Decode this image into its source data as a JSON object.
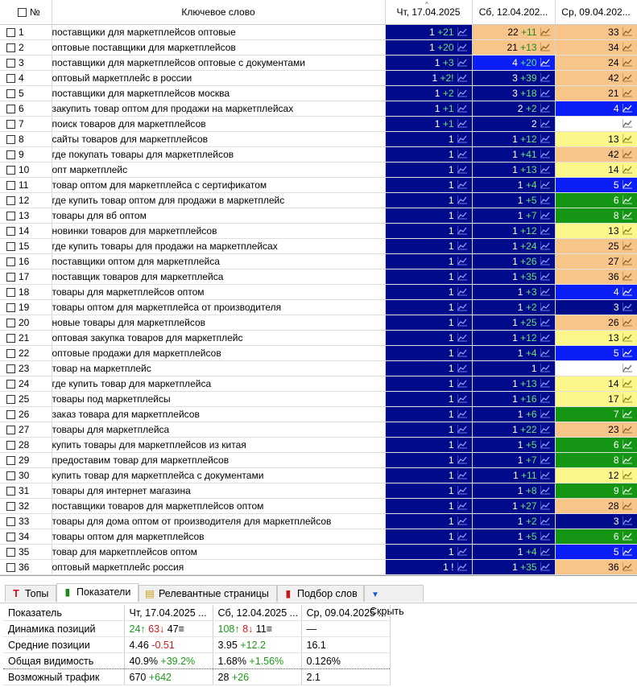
{
  "grid": {
    "headers": {
      "num": "№",
      "keyword": "Ключевое слово",
      "d1": "Чт, 17.04.2025",
      "d2": "Сб, 12.04.202...",
      "d3": "Ср, 09.04.202..."
    },
    "rows": [
      {
        "n": "1",
        "kw": "поставщики для маркетплейсов оптовые",
        "c": [
          [
            "1",
            "+21",
            "dark"
          ],
          [
            "22",
            "+11",
            "peach"
          ],
          [
            "33",
            "",
            "peach"
          ]
        ]
      },
      {
        "n": "2",
        "kw": "оптовые поставщики для маркетплейсов",
        "c": [
          [
            "1",
            "+20",
            "dark"
          ],
          [
            "21",
            "+13",
            "peach"
          ],
          [
            "34",
            "",
            "peach"
          ]
        ]
      },
      {
        "n": "3",
        "kw": "поставщики для маркетплейсов оптовые с документами",
        "c": [
          [
            "1",
            "+3",
            "dark"
          ],
          [
            "4",
            "+20",
            "blue"
          ],
          [
            "24",
            "",
            "peach"
          ]
        ]
      },
      {
        "n": "4",
        "kw": "оптовый маркетплейс в россии",
        "c": [
          [
            "1",
            "+2!",
            "dark"
          ],
          [
            "3",
            "+39",
            "dark"
          ],
          [
            "42",
            "",
            "peach"
          ]
        ]
      },
      {
        "n": "5",
        "kw": "поставщики для маркетплейсов москва",
        "c": [
          [
            "1",
            "+2",
            "dark"
          ],
          [
            "3",
            "+18",
            "dark"
          ],
          [
            "21",
            "",
            "peach"
          ]
        ]
      },
      {
        "n": "6",
        "kw": "закупить товар оптом для продажи на маркетплейсах",
        "c": [
          [
            "1",
            "+1",
            "dark"
          ],
          [
            "2",
            "+2",
            "dark"
          ],
          [
            "4",
            "",
            "blue"
          ]
        ]
      },
      {
        "n": "7",
        "kw": "поиск товаров для маркетплейсов",
        "c": [
          [
            "1",
            "+1",
            "dark"
          ],
          [
            "2",
            "",
            "dark"
          ],
          [
            "",
            "",
            "white"
          ]
        ]
      },
      {
        "n": "8",
        "kw": "сайты товаров для маркетплейсов",
        "c": [
          [
            "1",
            "",
            "dark"
          ],
          [
            "1",
            "+12",
            "dark"
          ],
          [
            "13",
            "",
            "yellow"
          ]
        ]
      },
      {
        "n": "9",
        "kw": "где покупать товары для маркетплейсов",
        "c": [
          [
            "1",
            "",
            "dark"
          ],
          [
            "1",
            "+41",
            "dark"
          ],
          [
            "42",
            "",
            "peach"
          ]
        ]
      },
      {
        "n": "10",
        "kw": "опт маркетплейс",
        "c": [
          [
            "1",
            "",
            "dark"
          ],
          [
            "1",
            "+13",
            "dark"
          ],
          [
            "14",
            "",
            "yellow"
          ]
        ]
      },
      {
        "n": "11",
        "kw": "товар оптом для маркетплейса с сертификатом",
        "c": [
          [
            "1",
            "",
            "dark"
          ],
          [
            "1",
            "+4",
            "dark"
          ],
          [
            "5",
            "",
            "blue"
          ]
        ]
      },
      {
        "n": "12",
        "kw": "где купить товар оптом для продажи в маркетплейс",
        "c": [
          [
            "1",
            "",
            "dark"
          ],
          [
            "1",
            "+5",
            "dark"
          ],
          [
            "6",
            "",
            "green"
          ]
        ]
      },
      {
        "n": "13",
        "kw": "товары для вб оптом",
        "c": [
          [
            "1",
            "",
            "dark"
          ],
          [
            "1",
            "+7",
            "dark"
          ],
          [
            "8",
            "",
            "green"
          ]
        ]
      },
      {
        "n": "14",
        "kw": "новинки товаров для маркетплейсов",
        "c": [
          [
            "1",
            "",
            "dark"
          ],
          [
            "1",
            "+12",
            "dark"
          ],
          [
            "13",
            "",
            "yellow"
          ]
        ]
      },
      {
        "n": "15",
        "kw": "где купить товары для продажи на маркетплейсах",
        "c": [
          [
            "1",
            "",
            "dark"
          ],
          [
            "1",
            "+24",
            "dark"
          ],
          [
            "25",
            "",
            "peach"
          ]
        ]
      },
      {
        "n": "16",
        "kw": "поставщики оптом для маркетплейса",
        "c": [
          [
            "1",
            "",
            "dark"
          ],
          [
            "1",
            "+26",
            "dark"
          ],
          [
            "27",
            "",
            "peach"
          ]
        ]
      },
      {
        "n": "17",
        "kw": "поставщик товаров для маркетплейса",
        "c": [
          [
            "1",
            "",
            "dark"
          ],
          [
            "1",
            "+35",
            "dark"
          ],
          [
            "36",
            "",
            "peach"
          ]
        ]
      },
      {
        "n": "18",
        "kw": "товары для маркетплейсов оптом",
        "c": [
          [
            "1",
            "",
            "dark"
          ],
          [
            "1",
            "+3",
            "dark"
          ],
          [
            "4",
            "",
            "blue"
          ]
        ]
      },
      {
        "n": "19",
        "kw": "товары оптом для маркетплейса от производителя",
        "c": [
          [
            "1",
            "",
            "dark"
          ],
          [
            "1",
            "+2",
            "dark"
          ],
          [
            "3",
            "",
            "dark"
          ]
        ]
      },
      {
        "n": "20",
        "kw": "новые товары для маркетплейсов",
        "c": [
          [
            "1",
            "",
            "dark"
          ],
          [
            "1",
            "+25",
            "dark"
          ],
          [
            "26",
            "",
            "peach"
          ]
        ]
      },
      {
        "n": "21",
        "kw": "оптовая закупка товаров для маркетплейс",
        "c": [
          [
            "1",
            "",
            "dark"
          ],
          [
            "1",
            "+12",
            "dark"
          ],
          [
            "13",
            "",
            "yellow"
          ]
        ]
      },
      {
        "n": "22",
        "kw": "оптовые продажи для маркетплейсов",
        "c": [
          [
            "1",
            "",
            "dark"
          ],
          [
            "1",
            "+4",
            "dark"
          ],
          [
            "5",
            "",
            "blue"
          ]
        ]
      },
      {
        "n": "23",
        "kw": "товар на маркетплейс",
        "c": [
          [
            "1",
            "",
            "dark"
          ],
          [
            "1",
            "",
            "dark"
          ],
          [
            "",
            "",
            "white"
          ]
        ]
      },
      {
        "n": "24",
        "kw": "где купить товар для маркетплейса",
        "c": [
          [
            "1",
            "",
            "dark"
          ],
          [
            "1",
            "+13",
            "dark"
          ],
          [
            "14",
            "",
            "yellow"
          ]
        ]
      },
      {
        "n": "25",
        "kw": "товары под маркетплейсы",
        "c": [
          [
            "1",
            "",
            "dark"
          ],
          [
            "1",
            "+16",
            "dark"
          ],
          [
            "17",
            "",
            "yellow"
          ]
        ]
      },
      {
        "n": "26",
        "kw": "заказ товара для маркетплейсов",
        "c": [
          [
            "1",
            "",
            "dark"
          ],
          [
            "1",
            "+6",
            "dark"
          ],
          [
            "7",
            "",
            "green"
          ]
        ]
      },
      {
        "n": "27",
        "kw": "товары для маркетплейса",
        "c": [
          [
            "1",
            "",
            "dark"
          ],
          [
            "1",
            "+22",
            "dark"
          ],
          [
            "23",
            "",
            "peach"
          ]
        ]
      },
      {
        "n": "28",
        "kw": "купить товары для маркетплейсов из китая",
        "c": [
          [
            "1",
            "",
            "dark"
          ],
          [
            "1",
            "+5",
            "dark"
          ],
          [
            "6",
            "",
            "green"
          ]
        ]
      },
      {
        "n": "29",
        "kw": "предоставим товар для маркетплейсов",
        "c": [
          [
            "1",
            "",
            "dark"
          ],
          [
            "1",
            "+7",
            "dark"
          ],
          [
            "8",
            "",
            "green"
          ]
        ]
      },
      {
        "n": "30",
        "kw": "купить товар для маркетплейса с документами",
        "c": [
          [
            "1",
            "",
            "dark"
          ],
          [
            "1",
            "+11",
            "dark"
          ],
          [
            "12",
            "",
            "yellow"
          ]
        ]
      },
      {
        "n": "31",
        "kw": "товары для интернет магазина",
        "c": [
          [
            "1",
            "",
            "dark"
          ],
          [
            "1",
            "+8",
            "dark"
          ],
          [
            "9",
            "",
            "green"
          ]
        ]
      },
      {
        "n": "32",
        "kw": "поставщики товаров для маркетплейсов оптом",
        "c": [
          [
            "1",
            "",
            "dark"
          ],
          [
            "1",
            "+27",
            "dark"
          ],
          [
            "28",
            "",
            "peach"
          ]
        ]
      },
      {
        "n": "33",
        "kw": "товары для дома оптом от производителя для маркетплейсов",
        "c": [
          [
            "1",
            "",
            "dark"
          ],
          [
            "1",
            "+2",
            "dark"
          ],
          [
            "3",
            "",
            "dark"
          ]
        ]
      },
      {
        "n": "34",
        "kw": "товары оптом для маркетплейсов",
        "c": [
          [
            "1",
            "",
            "dark"
          ],
          [
            "1",
            "+5",
            "dark"
          ],
          [
            "6",
            "",
            "green"
          ]
        ]
      },
      {
        "n": "35",
        "kw": "товар для маркетплейсов оптом",
        "c": [
          [
            "1",
            "",
            "dark"
          ],
          [
            "1",
            "+4",
            "dark"
          ],
          [
            "5",
            "",
            "blue"
          ]
        ]
      },
      {
        "n": "36",
        "kw": "оптовый маркетплейс россия",
        "c": [
          [
            "1 !",
            "",
            "dark"
          ],
          [
            "1",
            "+35",
            "dark"
          ],
          [
            "36",
            "",
            "peach"
          ]
        ]
      }
    ]
  },
  "colors": {
    "dark": "#020a8c",
    "blue": "#0a1ef5",
    "peach": "#f7c58a",
    "yellow": "#fbf78a",
    "green": "#149614",
    "white": "#ffffff"
  },
  "tabs": [
    {
      "label": "Топы",
      "icon": "T",
      "icon_color": "#d01010",
      "active": false
    },
    {
      "label": "Показатели",
      "icon": "▮",
      "icon_color": "#1a8a1a",
      "active": true
    },
    {
      "label": "Релевантные страницы",
      "icon": "▤",
      "icon_color": "#d09a10",
      "active": false
    },
    {
      "label": "Подбор слов",
      "icon": "▮",
      "icon_color": "#c01a1a",
      "active": false
    },
    {
      "label": "Скрыть",
      "icon": "▼",
      "icon_color": "#1a5ad0",
      "active": false
    }
  ],
  "stats": {
    "headers": [
      "Показатель",
      "Чт, 17.04.2025 ...",
      "Сб, 12.04.2025 ...",
      "Ср, 09.04.2025 ..."
    ],
    "rows": [
      {
        "label": "Динамика позиций",
        "c1": [
          [
            "24↑",
            "g"
          ],
          [
            " 63↓",
            "r"
          ],
          [
            " 47≡",
            ""
          ]
        ],
        "c2": [
          [
            "108↑",
            "g"
          ],
          [
            " 8↓",
            "r"
          ],
          [
            " 11≡",
            ""
          ]
        ],
        "c3": [
          [
            "—",
            ""
          ]
        ]
      },
      {
        "label": "Средние позиции",
        "c1": [
          [
            "4.46",
            ""
          ],
          [
            " -0.51",
            "r"
          ]
        ],
        "c2": [
          [
            "3.95",
            ""
          ],
          [
            " +12.2",
            "g"
          ]
        ],
        "c3": [
          [
            "16.1",
            ""
          ]
        ]
      },
      {
        "label": "Общая видимость",
        "c1": [
          [
            "40.9%",
            ""
          ],
          [
            " +39.2%",
            "g"
          ]
        ],
        "c2": [
          [
            "1.68%",
            ""
          ],
          [
            " +1.56%",
            "g"
          ]
        ],
        "c3": [
          [
            "0.126%",
            ""
          ]
        ],
        "sel": true
      },
      {
        "label": "Возможный трафик",
        "c1": [
          [
            "670",
            ""
          ],
          [
            " +642",
            "g"
          ]
        ],
        "c2": [
          [
            "28",
            ""
          ],
          [
            " +26",
            "g"
          ]
        ],
        "c3": [
          [
            "2.1",
            ""
          ]
        ]
      }
    ]
  }
}
